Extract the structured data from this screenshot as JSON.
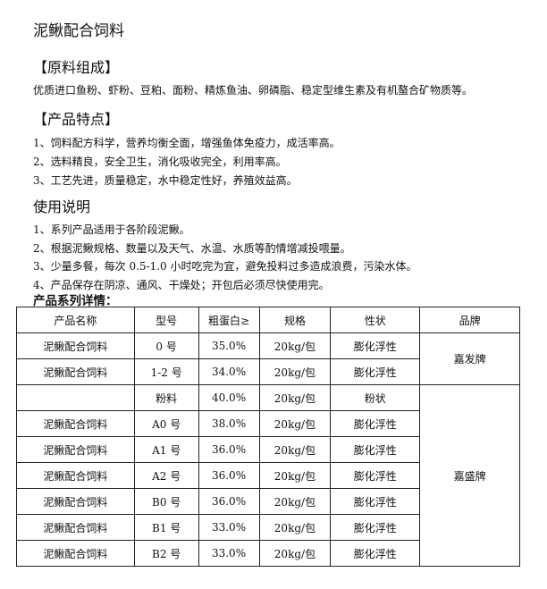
{
  "title": "泥鳅配合饲料",
  "ingredients": {
    "heading": "【原料组成】",
    "text": "优质进口鱼粉、虾粉、豆粕、面粉、精炼鱼油、卵磷脂、稳定型维生素及有机螯合矿物质等。"
  },
  "features": {
    "heading": "【产品特点】",
    "items": [
      "1、饲料配方科学，营养均衡全面，增强鱼体免疫力，成活率高。",
      "2、选料精良，安全卫生，消化吸收完全，利用率高。",
      "3、工艺先进，质量稳定，水中稳定性好，养殖效益高。"
    ]
  },
  "usage": {
    "heading": "使用说明",
    "items": [
      "1、系列产品适用于各阶段泥鳅。",
      "2、根据泥鳅规格、数量以及天气、水温、水质等酌情增减投喂量。",
      "3、少量多餐，每次 0.5-1.0 小时吃完为宜，避免投料过多造成浪费，污染水体。",
      "4、产品保存在阴凉、通风、干燥处；开包后必须尽快使用完。"
    ]
  },
  "table": {
    "caption": "产品系列详情：",
    "header": [
      "产品名称",
      "型号",
      "粗蛋白≥",
      "规格",
      "性状",
      "品牌"
    ],
    "rows": [
      [
        "泥鳅配合饲料",
        "0 号",
        "35.0%",
        "20kg/包",
        "膨化浮性",
        "嘉发牌"
      ],
      [
        "泥鳅配合饲料",
        "1-2 号",
        "34.0%",
        "20kg/包",
        "膨化浮性",
        null
      ],
      [
        null,
        "粉料",
        "40.0%",
        "20kg/包",
        "粉状",
        "嘉盛牌"
      ],
      [
        "泥鳅配合饲料",
        "A0 号",
        "38.0%",
        "20kg/包",
        "膨化浮性",
        null
      ],
      [
        "泥鳅配合饲料",
        "A1 号",
        "36.0%",
        "20kg/包",
        "膨化浮性",
        null
      ],
      [
        "泥鳅配合饲料",
        "A2 号",
        "36.0%",
        "20kg/包",
        "膨化浮性",
        null
      ],
      [
        "泥鳅配合饲料",
        "B0 号",
        "36.0%",
        "20kg/包",
        "膨化浮性",
        null
      ],
      [
        "泥鳅配合饲料",
        "B1 号",
        "33.0%",
        "20kg/包",
        "膨化浮性",
        null
      ],
      [
        "泥鳅配合饲料",
        "B2 号",
        "33.0%",
        "20kg/包",
        "膨化浮性",
        null
      ]
    ]
  }
}
